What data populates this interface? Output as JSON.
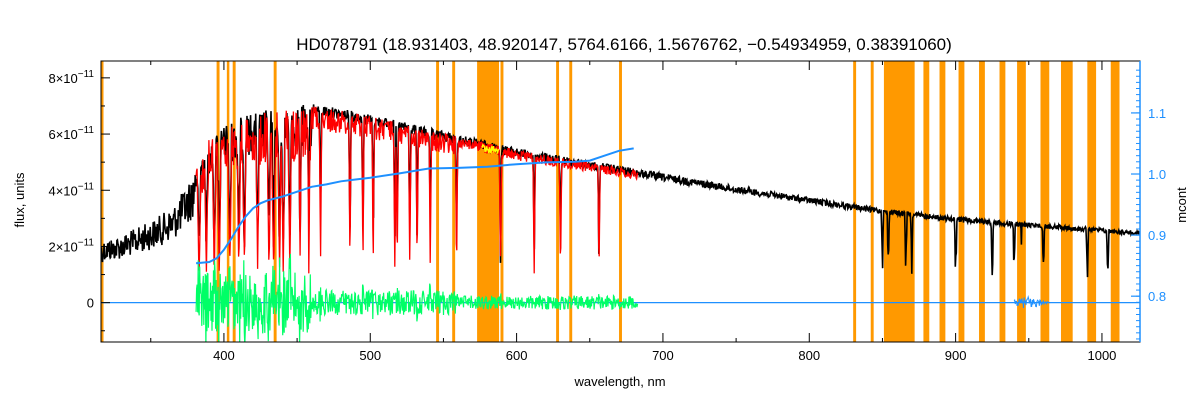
{
  "chart_data": {
    "type": "line",
    "title": "HD078791    (18.931403, 48.920147, 5764.6166, 1.5676762, −0.54934959, 0.38391060)",
    "xlabel": "wavelength, nm",
    "ylabel": "flux, units",
    "ylabel_right": "mcont",
    "xlim": [
      316,
      1026
    ],
    "ylim": [
      -1.4e-11,
      8.6e-11
    ],
    "ylim_right": [
      0.725,
      1.185
    ],
    "x_ticks": [
      400,
      500,
      600,
      700,
      800,
      900,
      1000
    ],
    "x_tick_labels": [
      "400",
      "500",
      "600",
      "700",
      "800",
      "900",
      "1000"
    ],
    "y_ticks": [
      0,
      2e-11,
      4e-11,
      6e-11,
      8e-11
    ],
    "y_tick_labels": [
      {
        "mant": "0",
        "exp": ""
      },
      {
        "mant": "2×10",
        "exp": "−11"
      },
      {
        "mant": "4×10",
        "exp": "−11"
      },
      {
        "mant": "6×10",
        "exp": "−11"
      },
      {
        "mant": "8×10",
        "exp": "−11"
      }
    ],
    "y_right_ticks": [
      0.8,
      0.9,
      1.0,
      1.1
    ],
    "y_right_tick_labels": [
      "0.8",
      "0.9",
      "1.0",
      "1.1"
    ],
    "grid": false,
    "colors": {
      "observed": "#000000",
      "model": "#ff0000",
      "residual": "#00ff66",
      "continuum": "#1e90ff",
      "masked": "#ff9900",
      "highlight": "#ffff00"
    },
    "masked_regions": [
      [
        316,
        317
      ],
      [
        395,
        397
      ],
      [
        402,
        403
      ],
      [
        406,
        408
      ],
      [
        434,
        436
      ],
      [
        545,
        547
      ],
      [
        556,
        558
      ],
      [
        573,
        588
      ],
      [
        589,
        591
      ],
      [
        627,
        629
      ],
      [
        636,
        638
      ],
      [
        670,
        672
      ],
      [
        830,
        832
      ],
      [
        842,
        844
      ],
      [
        851,
        872
      ],
      [
        878,
        882
      ],
      [
        889,
        893
      ],
      [
        902,
        906
      ],
      [
        916,
        920
      ],
      [
        930,
        934
      ],
      [
        942,
        948
      ],
      [
        958,
        964
      ],
      [
        972,
        980
      ],
      [
        990,
        996
      ],
      [
        1006,
        1012
      ]
    ],
    "continuum_curve": {
      "x": [
        381,
        390,
        395,
        400,
        405,
        410,
        415,
        420,
        425,
        430,
        440,
        450,
        460,
        470,
        480,
        490,
        500,
        520,
        540,
        560,
        580,
        600,
        620,
        640,
        650,
        660,
        670,
        680
      ],
      "y": [
        0.854,
        0.856,
        0.862,
        0.876,
        0.894,
        0.914,
        0.931,
        0.944,
        0.952,
        0.957,
        0.963,
        0.971,
        0.979,
        0.983,
        0.988,
        0.991,
        0.994,
        1.001,
        1.009,
        1.01,
        1.012,
        1.016,
        1.019,
        1.02,
        1.022,
        1.03,
        1.038,
        1.042
      ]
    },
    "observed_envelope": {
      "x": [
        316,
        330,
        350,
        365,
        375,
        385,
        390,
        400,
        420,
        450,
        460,
        500,
        550,
        600,
        650,
        700,
        750,
        800,
        850,
        900,
        950,
        1000,
        1026
      ],
      "y": [
        2.2e-11,
        2.4e-11,
        2.9e-11,
        3.4e-11,
        4.2e-11,
        5.4e-11,
        5.9e-11,
        6.3e-11,
        6.8e-11,
        7e-11,
        7.1e-11,
        6.7e-11,
        6.1e-11,
        5.5e-11,
        5.05e-11,
        4.6e-11,
        4.15e-11,
        3.75e-11,
        3.35e-11,
        3.05e-11,
        2.85e-11,
        2.65e-11,
        2.55e-11
      ]
    },
    "model_range": [
      381,
      683
    ]
  }
}
